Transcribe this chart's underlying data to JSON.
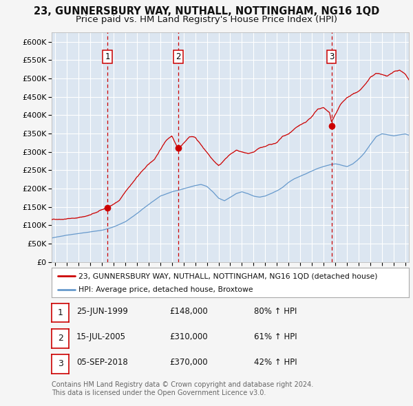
{
  "title": "23, GUNNERSBURY WAY, NUTHALL, NOTTINGHAM, NG16 1QD",
  "subtitle": "Price paid vs. HM Land Registry's House Price Index (HPI)",
  "ylim": [
    0,
    625000
  ],
  "xlim_start": 1994.7,
  "xlim_end": 2025.3,
  "yticks": [
    0,
    50000,
    100000,
    150000,
    200000,
    250000,
    300000,
    350000,
    400000,
    450000,
    500000,
    550000,
    600000
  ],
  "ytick_labels": [
    "£0",
    "£50K",
    "£100K",
    "£150K",
    "£200K",
    "£250K",
    "£300K",
    "£350K",
    "£400K",
    "£450K",
    "£500K",
    "£550K",
    "£600K"
  ],
  "xticks": [
    1995,
    1996,
    1997,
    1998,
    1999,
    2000,
    2001,
    2002,
    2003,
    2004,
    2005,
    2006,
    2007,
    2008,
    2009,
    2010,
    2011,
    2012,
    2013,
    2014,
    2015,
    2016,
    2017,
    2018,
    2019,
    2020,
    2021,
    2022,
    2023,
    2024,
    2025
  ],
  "sale_color": "#cc0000",
  "hpi_color": "#6699cc",
  "vline_color": "#cc0000",
  "plot_bg_color": "#dce6f1",
  "fig_bg_color": "#f5f5f5",
  "grid_color": "#ffffff",
  "sales": [
    {
      "num": 1,
      "date_dec": 1999.48,
      "price": 148000,
      "label": "1"
    },
    {
      "num": 2,
      "date_dec": 2005.54,
      "price": 310000,
      "label": "2"
    },
    {
      "num": 3,
      "date_dec": 2018.67,
      "price": 370000,
      "label": "3"
    }
  ],
  "legend_sale_label": "23, GUNNERSBURY WAY, NUTHALL, NOTTINGHAM, NG16 1QD (detached house)",
  "legend_hpi_label": "HPI: Average price, detached house, Broxtowe",
  "table_rows": [
    {
      "num": "1",
      "date": "25-JUN-1999",
      "price": "£148,000",
      "change": "80% ↑ HPI"
    },
    {
      "num": "2",
      "date": "15-JUL-2005",
      "price": "£310,000",
      "change": "61% ↑ HPI"
    },
    {
      "num": "3",
      "date": "05-SEP-2018",
      "price": "£370,000",
      "change": "42% ↑ HPI"
    }
  ],
  "footnote1": "Contains HM Land Registry data © Crown copyright and database right 2024.",
  "footnote2": "This data is licensed under the Open Government Licence v3.0.",
  "price_keypoints": [
    [
      1994.7,
      115000
    ],
    [
      1995.5,
      118000
    ],
    [
      1997.0,
      123000
    ],
    [
      1998.0,
      130000
    ],
    [
      1999.48,
      148000
    ],
    [
      2000.5,
      168000
    ],
    [
      2001.5,
      210000
    ],
    [
      2002.5,
      248000
    ],
    [
      2003.5,
      278000
    ],
    [
      2004.5,
      330000
    ],
    [
      2005.0,
      345000
    ],
    [
      2005.54,
      310000
    ],
    [
      2006.0,
      325000
    ],
    [
      2006.5,
      342000
    ],
    [
      2007.0,
      340000
    ],
    [
      2007.5,
      320000
    ],
    [
      2008.0,
      300000
    ],
    [
      2008.5,
      280000
    ],
    [
      2009.0,
      265000
    ],
    [
      2009.5,
      280000
    ],
    [
      2010.0,
      295000
    ],
    [
      2010.5,
      305000
    ],
    [
      2011.0,
      300000
    ],
    [
      2011.5,
      295000
    ],
    [
      2012.0,
      295000
    ],
    [
      2012.5,
      305000
    ],
    [
      2013.0,
      310000
    ],
    [
      2013.5,
      315000
    ],
    [
      2014.0,
      320000
    ],
    [
      2014.5,
      335000
    ],
    [
      2015.0,
      340000
    ],
    [
      2015.5,
      355000
    ],
    [
      2016.0,
      365000
    ],
    [
      2016.5,
      370000
    ],
    [
      2017.0,
      385000
    ],
    [
      2017.5,
      405000
    ],
    [
      2018.0,
      410000
    ],
    [
      2018.5,
      395000
    ],
    [
      2018.67,
      370000
    ],
    [
      2019.0,
      390000
    ],
    [
      2019.5,
      420000
    ],
    [
      2020.0,
      435000
    ],
    [
      2020.5,
      445000
    ],
    [
      2021.0,
      455000
    ],
    [
      2021.5,
      470000
    ],
    [
      2022.0,
      490000
    ],
    [
      2022.5,
      500000
    ],
    [
      2023.0,
      495000
    ],
    [
      2023.5,
      490000
    ],
    [
      2024.0,
      500000
    ],
    [
      2024.5,
      505000
    ],
    [
      2025.0,
      495000
    ],
    [
      2025.3,
      480000
    ]
  ],
  "hpi_keypoints": [
    [
      1994.7,
      65000
    ],
    [
      1995.0,
      67000
    ],
    [
      1996.0,
      72000
    ],
    [
      1997.0,
      76000
    ],
    [
      1998.0,
      80000
    ],
    [
      1999.0,
      85000
    ],
    [
      2000.0,
      94000
    ],
    [
      2001.0,
      108000
    ],
    [
      2002.0,
      130000
    ],
    [
      2003.0,
      155000
    ],
    [
      2004.0,
      178000
    ],
    [
      2005.0,
      190000
    ],
    [
      2006.0,
      198000
    ],
    [
      2007.0,
      207000
    ],
    [
      2007.5,
      210000
    ],
    [
      2008.0,
      205000
    ],
    [
      2008.5,
      190000
    ],
    [
      2009.0,
      172000
    ],
    [
      2009.5,
      165000
    ],
    [
      2010.0,
      175000
    ],
    [
      2010.5,
      185000
    ],
    [
      2011.0,
      190000
    ],
    [
      2011.5,
      185000
    ],
    [
      2012.0,
      178000
    ],
    [
      2012.5,
      175000
    ],
    [
      2013.0,
      178000
    ],
    [
      2013.5,
      185000
    ],
    [
      2014.0,
      192000
    ],
    [
      2014.5,
      202000
    ],
    [
      2015.0,
      215000
    ],
    [
      2015.5,
      225000
    ],
    [
      2016.0,
      232000
    ],
    [
      2016.5,
      238000
    ],
    [
      2017.0,
      245000
    ],
    [
      2017.5,
      252000
    ],
    [
      2018.0,
      258000
    ],
    [
      2018.5,
      262000
    ],
    [
      2019.0,
      265000
    ],
    [
      2019.5,
      262000
    ],
    [
      2020.0,
      258000
    ],
    [
      2020.5,
      265000
    ],
    [
      2021.0,
      278000
    ],
    [
      2021.5,
      295000
    ],
    [
      2022.0,
      318000
    ],
    [
      2022.5,
      340000
    ],
    [
      2023.0,
      348000
    ],
    [
      2023.5,
      345000
    ],
    [
      2024.0,
      342000
    ],
    [
      2024.5,
      345000
    ],
    [
      2025.0,
      348000
    ],
    [
      2025.3,
      345000
    ]
  ]
}
